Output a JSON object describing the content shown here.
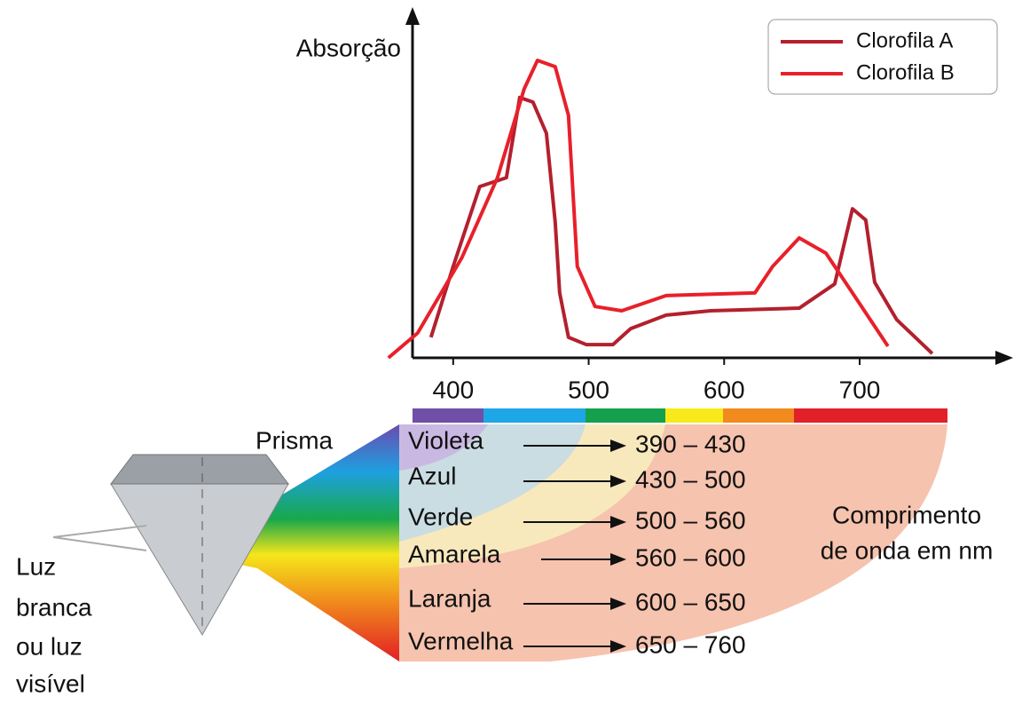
{
  "chart_data": {
    "type": "line",
    "y_label": "Absorção",
    "xlim": [
      370,
      810
    ],
    "ylim": [
      0,
      100
    ],
    "xticks": [
      400,
      500,
      600,
      700
    ],
    "legend": "top-right",
    "series": [
      {
        "name": "Clorofila A",
        "color": "#b3202e",
        "x": [
          383.6,
          400,
          419.6,
          439.3,
          449.1,
          458.9,
          468.8,
          475.3,
          478.6,
          485.1,
          498.2,
          517.9,
          531,
          557.2,
          590,
          655.4,
          681.6,
          694.7,
          704.5,
          711.1,
          727.4,
          753.6
        ],
        "values": [
          6.2,
          27.6,
          51.7,
          54.4,
          78.6,
          77.2,
          67.8,
          41.0,
          19.6,
          6.2,
          4.0,
          4.0,
          8.8,
          12.9,
          14.2,
          15.0,
          22.3,
          45.0,
          41.6,
          22.8,
          11.5,
          1.3
        ]
      },
      {
        "name": "Clorofila B",
        "color": "#e8202a",
        "x": [
          352.2,
          373.8,
          406.5,
          432.7,
          452.4,
          462.2,
          475.3,
          485.1,
          491.6,
          504.7,
          524.4,
          557.2,
          622.7,
          635.8,
          655.4,
          675.1,
          694.7,
          720.9
        ],
        "values": [
          0,
          7.5,
          30.3,
          54.4,
          81.2,
          89.8,
          87.9,
          73.2,
          27.6,
          15.5,
          14.2,
          18.8,
          19.6,
          27.6,
          36.2,
          31.6,
          19.6,
          3.5
        ]
      }
    ]
  },
  "diagram": {
    "prism_label": "Prisma",
    "light_label": [
      "Luz",
      "branca",
      "ou luz",
      "visível"
    ],
    "wavelength_label": [
      "Comprimento",
      "de onda em nm"
    ],
    "bands": [
      {
        "name": "Violeta",
        "range": "390 – 430"
      },
      {
        "name": "Azul",
        "range": "430 – 500"
      },
      {
        "name": "Verde",
        "range": "500 – 560"
      },
      {
        "name": "Amarela",
        "range": "560 – 600"
      },
      {
        "name": "Laranja",
        "range": "600 – 650"
      },
      {
        "name": "Vermelha",
        "range": "650 – 760"
      }
    ]
  }
}
